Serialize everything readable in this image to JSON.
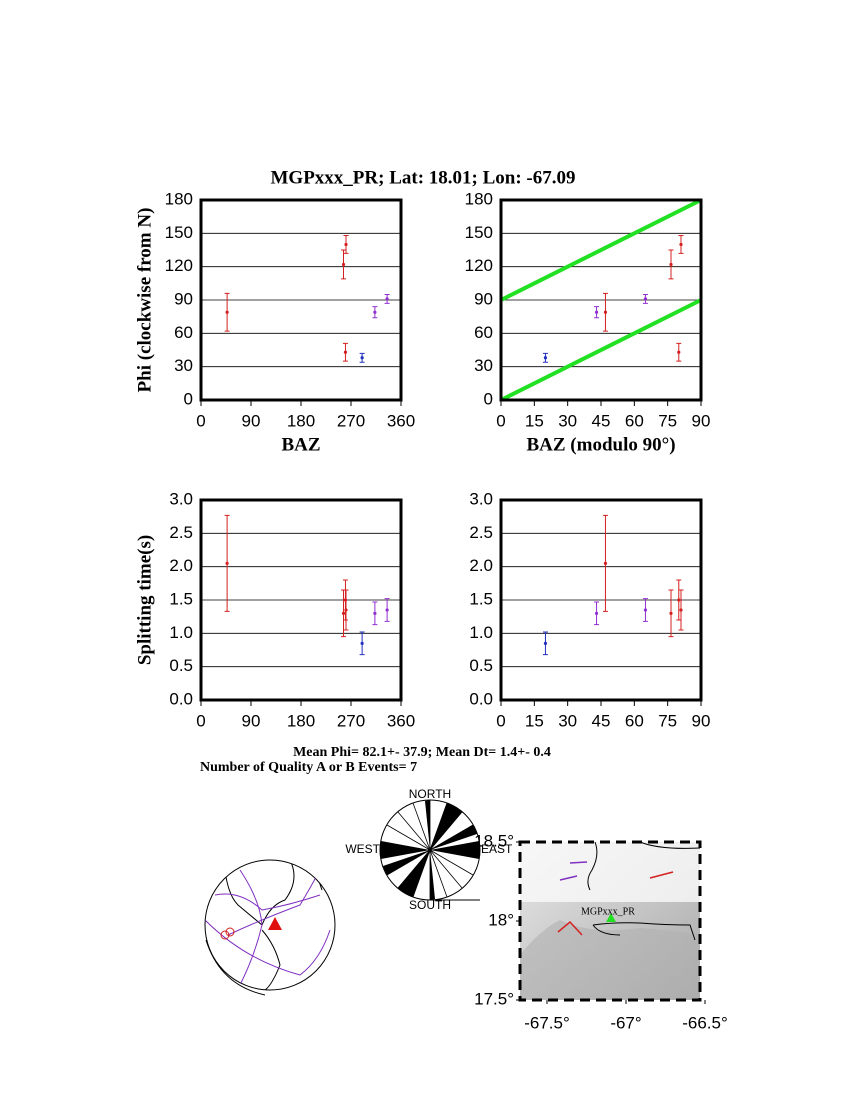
{
  "title": "MGPxxx_PR; Lat:  18.01;  Lon:  -67.09",
  "summary": [
    "Mean Phi= 82.1+- 37.9; Mean Dt=  1.4+-  0.4",
    "Number of Quality A or B Events=  7"
  ],
  "rose": {
    "north": "NORTH",
    "south": "SOUTH",
    "west": "WEST",
    "east": "EAST"
  },
  "map": {
    "station": "MGPxxx_PR",
    "yticks": [
      {
        "value": 17.5,
        "label": "17.5°"
      },
      {
        "value": 18,
        "label": "18°"
      },
      {
        "value": 18.5,
        "label": "18.5°"
      }
    ],
    "xticks": [
      {
        "value": -67.5,
        "label": "-67.5°"
      },
      {
        "value": -67,
        "label": "-67°"
      },
      {
        "value": -66.5,
        "label": "-66.5°"
      }
    ]
  },
  "chart_data": [
    {
      "type": "scatter",
      "ylabel": "Phi (clockwise from N)",
      "xlabel": "BAZ",
      "grid": true,
      "xlim": [
        0,
        360
      ],
      "xticks": [
        0,
        90,
        180,
        270,
        360
      ],
      "ylim": [
        0,
        180
      ],
      "yticks": [
        0,
        30,
        60,
        90,
        120,
        150,
        180
      ],
      "x": [
        47,
        256.5,
        261,
        260,
        290,
        313,
        335
      ],
      "values": [
        79,
        122,
        140,
        43,
        38,
        79,
        91
      ],
      "errors": [
        17,
        13,
        8,
        8,
        4,
        5,
        4
      ],
      "colors": [
        "#d42020",
        "#d42020",
        "#d42020",
        "#d42020",
        "#2030c0",
        "#9030d0",
        "#9030d0"
      ]
    },
    {
      "type": "scatter",
      "xlabel": "BAZ (modulo 90°)",
      "grid": true,
      "xlim": [
        0,
        90
      ],
      "xticks": [
        0,
        15,
        30,
        45,
        60,
        75,
        90
      ],
      "ylim": [
        0,
        180
      ],
      "yticks": [
        0,
        30,
        60,
        90,
        120,
        150,
        180
      ],
      "x": [
        47,
        76.5,
        81,
        80,
        20,
        43,
        65
      ],
      "values": [
        79,
        122,
        140,
        43,
        38,
        79,
        91
      ],
      "errors": [
        17,
        13,
        8,
        8,
        4,
        5,
        4
      ],
      "colors": [
        "#d42020",
        "#d42020",
        "#d42020",
        "#d42020",
        "#2030c0",
        "#9030d0",
        "#9030d0"
      ],
      "reference_lines": [
        {
          "x": [
            0,
            90
          ],
          "y": [
            0,
            90
          ]
        },
        {
          "x": [
            0,
            90
          ],
          "y": [
            90,
            180
          ]
        }
      ],
      "reference_color": "#22e022"
    },
    {
      "type": "scatter",
      "ylabel": "Splitting time(s)",
      "grid": true,
      "xlim": [
        0,
        360
      ],
      "xticks": [
        0,
        90,
        180,
        270,
        360
      ],
      "ylim": [
        0,
        3
      ],
      "yticks": [
        {
          "value": 0,
          "label": "0.0"
        },
        {
          "value": 0.5,
          "label": "0.5"
        },
        {
          "value": 1,
          "label": "1.0"
        },
        {
          "value": 1.5,
          "label": "1.5"
        },
        {
          "value": 2,
          "label": "2.0"
        },
        {
          "value": 2.5,
          "label": "2.5"
        },
        {
          "value": 3,
          "label": "3.0"
        }
      ],
      "x": [
        47,
        256.5,
        261,
        260,
        290,
        313,
        335
      ],
      "values": [
        2.05,
        1.3,
        1.35,
        1.5,
        0.85,
        1.3,
        1.35
      ],
      "errors": [
        0.72,
        0.35,
        0.3,
        0.3,
        0.17,
        0.17,
        0.17
      ],
      "colors": [
        "#d42020",
        "#d42020",
        "#d42020",
        "#d42020",
        "#2030c0",
        "#9030d0",
        "#9030d0"
      ]
    },
    {
      "type": "scatter",
      "grid": true,
      "xlim": [
        0,
        90
      ],
      "xticks": [
        0,
        15,
        30,
        45,
        60,
        75,
        90
      ],
      "ylim": [
        0,
        3
      ],
      "yticks": [
        {
          "value": 0,
          "label": "0.0"
        },
        {
          "value": 0.5,
          "label": "0.5"
        },
        {
          "value": 1,
          "label": "1.0"
        },
        {
          "value": 1.5,
          "label": "1.5"
        },
        {
          "value": 2,
          "label": "2.0"
        },
        {
          "value": 2.5,
          "label": "2.5"
        },
        {
          "value": 3,
          "label": "3.0"
        }
      ],
      "x": [
        47,
        76.5,
        81,
        80,
        20,
        43,
        65
      ],
      "values": [
        2.05,
        1.3,
        1.35,
        1.5,
        0.85,
        1.3,
        1.35
      ],
      "errors": [
        0.72,
        0.35,
        0.3,
        0.3,
        0.17,
        0.17,
        0.17
      ],
      "colors": [
        "#d42020",
        "#d42020",
        "#d42020",
        "#d42020",
        "#2030c0",
        "#9030d0",
        "#9030d0"
      ]
    }
  ]
}
